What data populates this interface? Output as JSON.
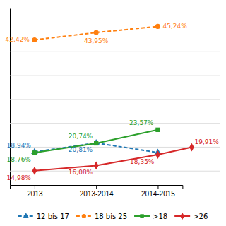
{
  "chart_data": {
    "type": "line",
    "categories": [
      "2013",
      "2013-2014",
      "2014-2015"
    ],
    "series": [
      {
        "name": "12 bis 17",
        "values": [
          18.94,
          20.81,
          18.8
        ],
        "value_labels": [
          "18,94%",
          "20,81%",
          null
        ],
        "marker": "triangle",
        "line_style": "dashed"
      },
      {
        "name": "18 bis 25",
        "values": [
          42.42,
          43.95,
          45.24
        ],
        "value_labels": [
          "42,42%",
          "43,95%",
          "45,24%"
        ],
        "marker": "circle",
        "line_style": "dashed"
      },
      {
        "name": ">18",
        "values": [
          18.76,
          20.74,
          23.57
        ],
        "value_labels": [
          "18,76%",
          "20,74%",
          "23,57%"
        ],
        "marker": "square",
        "line_style": "solid"
      },
      {
        "name": ">26",
        "values": [
          14.98,
          16.08,
          18.35
        ],
        "value_labels": [
          "14,98%",
          "16,08%",
          "18,35%"
        ],
        "marker": "diamond",
        "line_style": "solid"
      }
    ],
    "annotations": [
      {
        "text": "19,91%",
        "value": 19.91
      }
    ],
    "ylim": [
      12,
      49
    ],
    "yticks": [
      15,
      20,
      25,
      30,
      35,
      40,
      45
    ],
    "grid": true,
    "tick_labels": "x",
    "data_labels": true,
    "legend": "bottom"
  }
}
